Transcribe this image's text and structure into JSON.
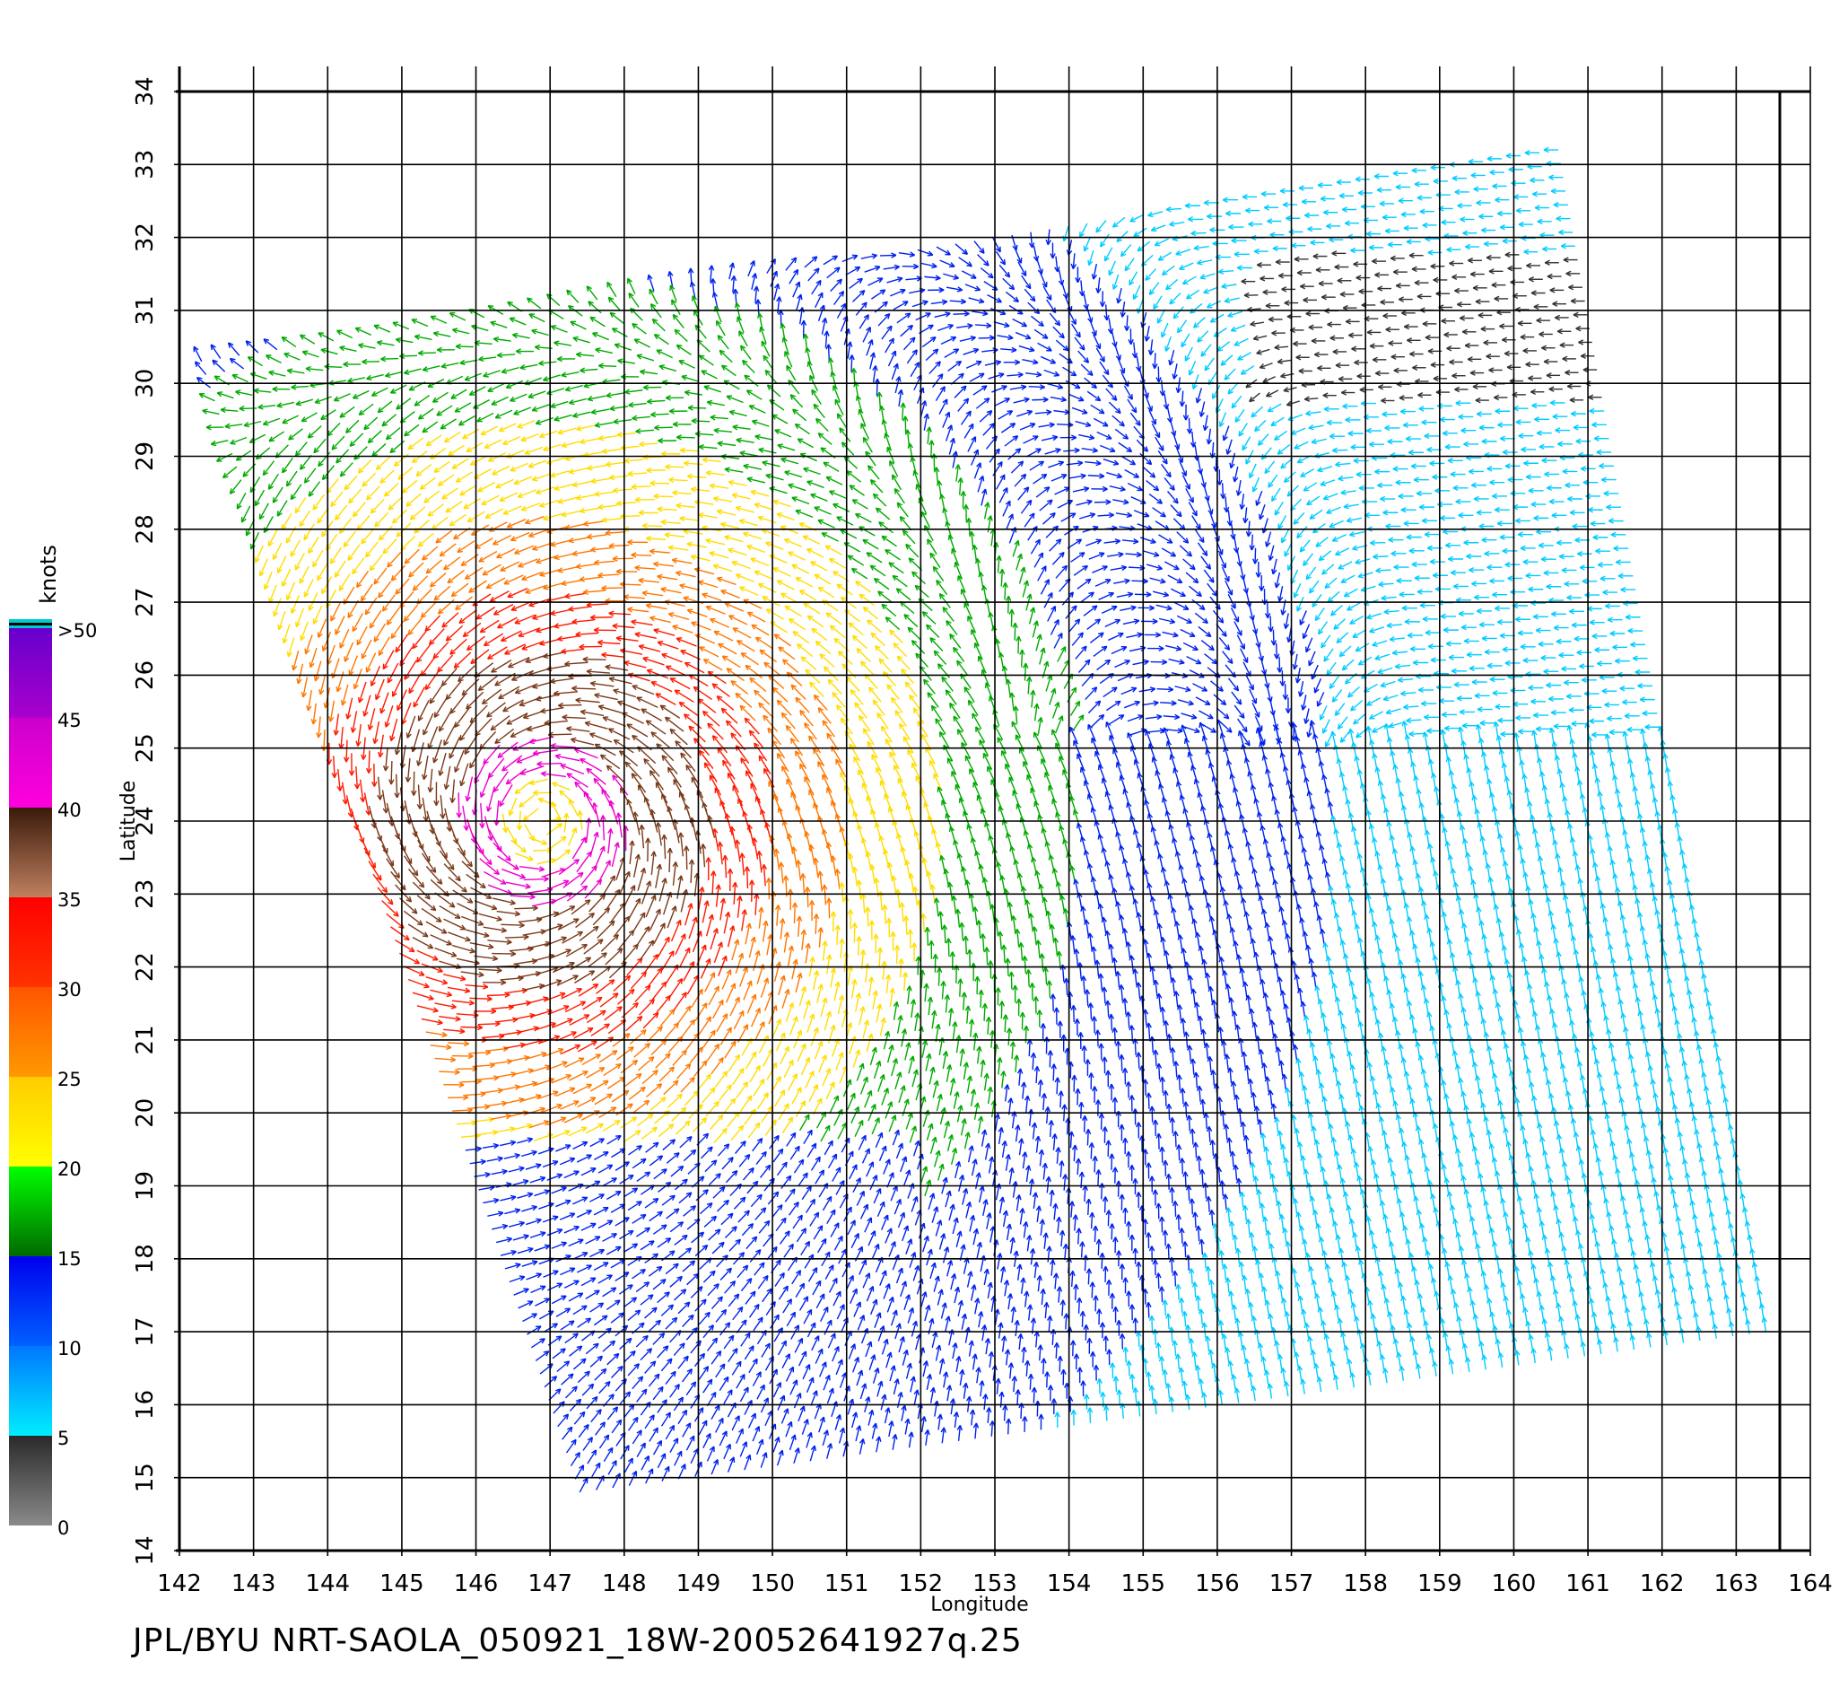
{
  "footer_text": "JPL/BYU NRT-SAOLA_050921_18W-20052641927q.25",
  "chart_data": {
    "type": "wind-vector-map",
    "xlabel": "Longitude",
    "ylabel": "Latitude",
    "xlim": [
      142,
      164
    ],
    "ylim": [
      14,
      34
    ],
    "x_ticks": [
      "142",
      "143",
      "144",
      "145",
      "146",
      "147",
      "148",
      "149",
      "150",
      "151",
      "152",
      "153",
      "154",
      "155",
      "156",
      "157",
      "158",
      "159",
      "160",
      "161",
      "162",
      "163",
      "164"
    ],
    "y_ticks": [
      "14",
      "15",
      "16",
      "17",
      "18",
      "19",
      "20",
      "21",
      "22",
      "23",
      "24",
      "25",
      "26",
      "27",
      "28",
      "29",
      "30",
      "31",
      "32",
      "33",
      "34"
    ],
    "grid": true,
    "colorbar": {
      "unit": "knots",
      "labels": [
        "0",
        "5",
        "10",
        "15",
        "20",
        "25",
        "30",
        "35",
        "40",
        "45",
        ">50"
      ],
      "bands": [
        {
          "range": [
            0,
            5
          ],
          "from": "#8a8a8a",
          "to": "#2a2a2a"
        },
        {
          "range": [
            5,
            10
          ],
          "from": "#00eeff",
          "to": "#0077ff"
        },
        {
          "range": [
            10,
            15
          ],
          "from": "#0060ff",
          "to": "#0000ee"
        },
        {
          "range": [
            15,
            20
          ],
          "from": "#006a00",
          "to": "#00ff00"
        },
        {
          "range": [
            20,
            25
          ],
          "from": "#ffff00",
          "to": "#ffcc00"
        },
        {
          "range": [
            25,
            30
          ],
          "from": "#ff9900",
          "to": "#ff5500"
        },
        {
          "range": [
            30,
            35
          ],
          "from": "#ff3300",
          "to": "#ff0000"
        },
        {
          "range": [
            35,
            40
          ],
          "from": "#c08060",
          "to": "#3a1a0a"
        },
        {
          "range": [
            40,
            45
          ],
          "from": "#ff00dd",
          "to": "#cc00cc"
        },
        {
          "range": [
            45,
            50
          ],
          "from": "#aa00cc",
          "to": "#6600cc"
        }
      ]
    },
    "swath": {
      "corners_lonlat": [
        [
          142.3,
          30.3
        ],
        [
          160.6,
          33.2
        ],
        [
          163.4,
          17.0
        ],
        [
          147.4,
          14.8
        ]
      ]
    },
    "cyclone_center": {
      "lon": 146.9,
      "lat": 24.0
    },
    "vector_colors": {
      "calm": "#333333",
      "light": "#00ccff",
      "moderate": "#0022ee",
      "fresh": "#00aa00",
      "strong": "#ffdd00",
      "gale": "#ff7700",
      "storm": "#ff1a00",
      "severe": "#7a3a1a",
      "extreme": "#ee00cc"
    }
  }
}
